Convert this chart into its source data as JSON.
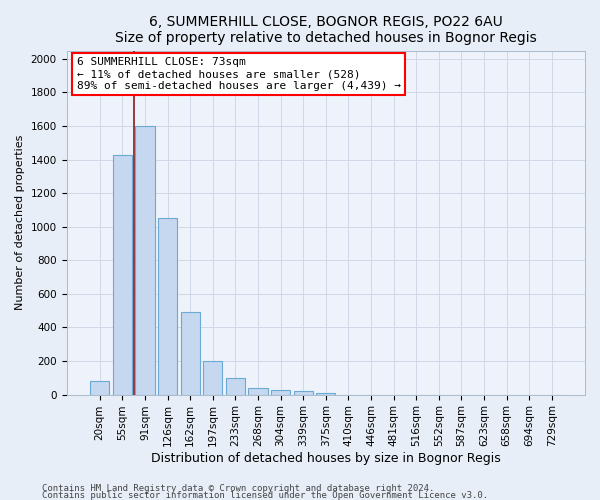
{
  "title1": "6, SUMMERHILL CLOSE, BOGNOR REGIS, PO22 6AU",
  "title2": "Size of property relative to detached houses in Bognor Regis",
  "xlabel": "Distribution of detached houses by size in Bognor Regis",
  "ylabel": "Number of detached properties",
  "categories": [
    "20sqm",
    "55sqm",
    "91sqm",
    "126sqm",
    "162sqm",
    "197sqm",
    "233sqm",
    "268sqm",
    "304sqm",
    "339sqm",
    "375sqm",
    "410sqm",
    "446sqm",
    "481sqm",
    "516sqm",
    "552sqm",
    "587sqm",
    "623sqm",
    "658sqm",
    "694sqm",
    "729sqm"
  ],
  "values": [
    80,
    1425,
    1600,
    1050,
    490,
    200,
    100,
    40,
    25,
    20,
    10,
    0,
    0,
    0,
    0,
    0,
    0,
    0,
    0,
    0,
    0
  ],
  "bar_color": "#c5d8ef",
  "bar_edge_color": "#6aaad4",
  "vline_color": "#8b1a1a",
  "annotation_text": "6 SUMMERHILL CLOSE: 73sqm\n← 11% of detached houses are smaller (528)\n89% of semi-detached houses are larger (4,439) →",
  "ylim": [
    0,
    2050
  ],
  "yticks": [
    0,
    200,
    400,
    600,
    800,
    1000,
    1200,
    1400,
    1600,
    1800,
    2000
  ],
  "footer1": "Contains HM Land Registry data © Crown copyright and database right 2024.",
  "footer2": "Contains public sector information licensed under the Open Government Licence v3.0.",
  "bg_color": "#e8eef8",
  "plot_bg_color": "#eef2fa",
  "grid_color": "#d0d8e8",
  "title1_fontsize": 10,
  "title2_fontsize": 9,
  "xlabel_fontsize": 9,
  "ylabel_fontsize": 8,
  "tick_fontsize": 7.5,
  "annotation_fontsize": 8,
  "footer_fontsize": 6.5,
  "vline_pos": 1.5
}
